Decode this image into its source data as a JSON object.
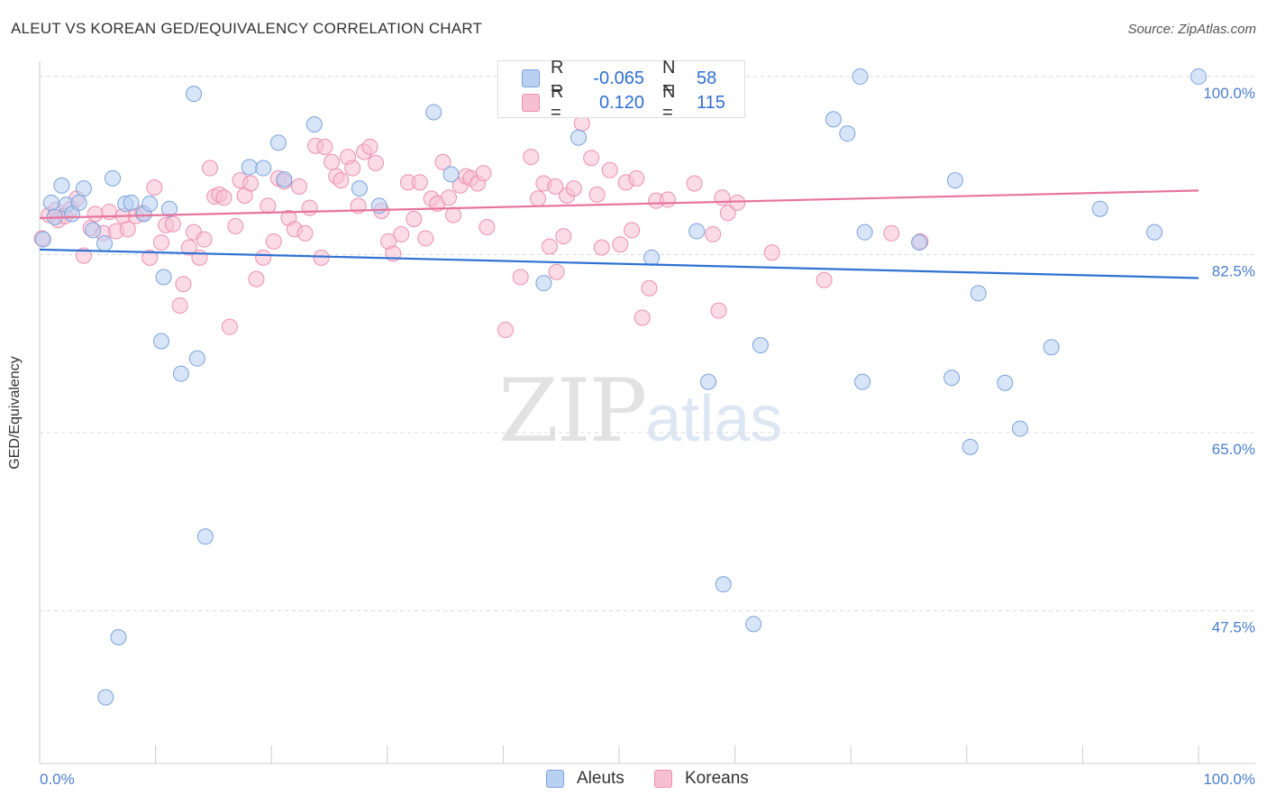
{
  "header": {
    "title": "ALEUT VS KOREAN GED/EQUIVALENCY CORRELATION CHART",
    "source": "Source: ZipAtlas.com"
  },
  "legend": {
    "row1": {
      "r_label": "R =",
      "r_value": "-0.065",
      "n_label": "N =",
      "n_value": "58"
    },
    "row2": {
      "r_label": "R =",
      "r_value": "0.120",
      "n_label": "N =",
      "n_value": "115"
    }
  },
  "bottom_legend": {
    "series1": "Aleuts",
    "series2": "Koreans"
  },
  "watermark": {
    "zip": "ZIP",
    "atlas": "atlas"
  },
  "colors": {
    "aleut_fill": "#b8d0f2",
    "aleut_stroke": "#7aa3dc",
    "aleut_line": "#2f72d2",
    "korean_fill": "#f7bfd2",
    "korean_stroke": "#ec8fb0",
    "korean_line": "#e8739d",
    "grid": "#d9d9d9",
    "axis_text": "#4a7fd0"
  },
  "chart_data": {
    "type": "scatter",
    "title": "ALEUT VS KOREAN GED/EQUIVALENCY CORRELATION CHART",
    "xlabel": "",
    "ylabel": "GED/Equivalency",
    "xlim": [
      0,
      100
    ],
    "ylim": [
      32.5,
      101.5
    ],
    "x_tick_labels": [
      "0.0%",
      "100.0%"
    ],
    "y_ticks": [
      47.5,
      65.0,
      82.5,
      100.0
    ],
    "y_tick_labels": [
      "47.5%",
      "65.0%",
      "82.5%",
      "100.0%"
    ],
    "grid": "horizontal dashed",
    "legend_placement": "top-center",
    "series": [
      {
        "name": "Aleuts",
        "r": -0.065,
        "n": 58,
        "trend": {
          "x": [
            0,
            100
          ],
          "y": [
            83.0,
            80.2
          ]
        },
        "points": [
          [
            0.3,
            84.0
          ],
          [
            1.0,
            87.6
          ],
          [
            1.3,
            86.2
          ],
          [
            1.9,
            89.3
          ],
          [
            2.3,
            87.4
          ],
          [
            2.8,
            86.5
          ],
          [
            3.4,
            87.6
          ],
          [
            3.8,
            89.0
          ],
          [
            4.6,
            84.9
          ],
          [
            5.6,
            83.6
          ],
          [
            6.3,
            90.0
          ],
          [
            7.4,
            87.5
          ],
          [
            7.9,
            87.6
          ],
          [
            9.0,
            86.5
          ],
          [
            9.5,
            87.5
          ],
          [
            10.7,
            80.3
          ],
          [
            11.2,
            87.0
          ],
          [
            10.5,
            74.0
          ],
          [
            12.2,
            70.8
          ],
          [
            13.6,
            72.3
          ],
          [
            13.3,
            98.3
          ],
          [
            14.3,
            54.8
          ],
          [
            18.1,
            91.1
          ],
          [
            19.3,
            91.0
          ],
          [
            20.6,
            93.5
          ],
          [
            21.1,
            89.9
          ],
          [
            23.7,
            95.3
          ],
          [
            27.6,
            89.0
          ],
          [
            29.3,
            87.3
          ],
          [
            34.0,
            96.5
          ],
          [
            35.5,
            90.4
          ],
          [
            43.5,
            79.7
          ],
          [
            46.5,
            94.0
          ],
          [
            52.8,
            82.2
          ],
          [
            56.7,
            84.8
          ],
          [
            57.7,
            70.0
          ],
          [
            59.0,
            50.1
          ],
          [
            61.6,
            46.2
          ],
          [
            62.2,
            73.6
          ],
          [
            68.5,
            95.8
          ],
          [
            69.7,
            94.4
          ],
          [
            70.8,
            100.0
          ],
          [
            71.2,
            84.7
          ],
          [
            71.0,
            70.0
          ],
          [
            75.9,
            83.7
          ],
          [
            78.7,
            70.4
          ],
          [
            79.0,
            89.8
          ],
          [
            80.3,
            63.6
          ],
          [
            81.0,
            78.7
          ],
          [
            83.3,
            69.9
          ],
          [
            84.6,
            65.4
          ],
          [
            87.3,
            73.4
          ],
          [
            91.5,
            87.0
          ],
          [
            96.2,
            84.7
          ],
          [
            100.0,
            100.0
          ],
          [
            5.7,
            39.0
          ],
          [
            6.8,
            44.9
          ],
          [
            56.0,
            100.0
          ]
        ]
      },
      {
        "name": "Koreans",
        "r": 0.12,
        "n": 115,
        "trend": {
          "x": [
            0,
            100
          ],
          "y": [
            86.1,
            88.8
          ]
        },
        "points": [
          [
            0.2,
            84.1
          ],
          [
            0.8,
            86.4
          ],
          [
            1.4,
            86.9
          ],
          [
            1.6,
            85.9
          ],
          [
            2.2,
            86.3
          ],
          [
            2.7,
            87.0
          ],
          [
            3.2,
            88.0
          ],
          [
            3.8,
            82.4
          ],
          [
            4.4,
            85.1
          ],
          [
            4.8,
            86.5
          ],
          [
            5.5,
            84.6
          ],
          [
            6.0,
            86.7
          ],
          [
            6.6,
            84.8
          ],
          [
            7.2,
            86.3
          ],
          [
            7.6,
            85.0
          ],
          [
            8.3,
            86.3
          ],
          [
            8.9,
            86.6
          ],
          [
            9.5,
            82.2
          ],
          [
            9.9,
            89.1
          ],
          [
            10.5,
            83.7
          ],
          [
            10.9,
            85.4
          ],
          [
            11.5,
            85.5
          ],
          [
            12.1,
            77.5
          ],
          [
            12.4,
            79.6
          ],
          [
            12.9,
            83.2
          ],
          [
            13.3,
            84.7
          ],
          [
            13.8,
            82.2
          ],
          [
            14.2,
            84.0
          ],
          [
            14.7,
            91.0
          ],
          [
            15.1,
            88.2
          ],
          [
            15.5,
            88.4
          ],
          [
            15.9,
            88.1
          ],
          [
            16.4,
            75.4
          ],
          [
            16.9,
            85.3
          ],
          [
            17.3,
            89.8
          ],
          [
            17.7,
            88.3
          ],
          [
            18.2,
            89.5
          ],
          [
            18.7,
            80.1
          ],
          [
            19.3,
            82.2
          ],
          [
            19.7,
            87.3
          ],
          [
            20.2,
            83.8
          ],
          [
            20.6,
            90.0
          ],
          [
            21.1,
            89.7
          ],
          [
            21.5,
            86.1
          ],
          [
            22.0,
            85.0
          ],
          [
            22.4,
            89.2
          ],
          [
            22.9,
            84.6
          ],
          [
            23.3,
            87.1
          ],
          [
            23.8,
            93.2
          ],
          [
            24.3,
            82.2
          ],
          [
            24.6,
            93.1
          ],
          [
            25.2,
            91.6
          ],
          [
            25.6,
            90.2
          ],
          [
            26.0,
            89.8
          ],
          [
            26.6,
            92.1
          ],
          [
            27.0,
            91.0
          ],
          [
            27.5,
            87.3
          ],
          [
            28.0,
            92.6
          ],
          [
            28.5,
            93.1
          ],
          [
            29.0,
            91.5
          ],
          [
            29.5,
            86.8
          ],
          [
            30.1,
            83.8
          ],
          [
            30.5,
            82.6
          ],
          [
            31.2,
            84.5
          ],
          [
            31.8,
            89.6
          ],
          [
            32.3,
            86.0
          ],
          [
            32.8,
            89.6
          ],
          [
            33.3,
            84.1
          ],
          [
            33.8,
            88.0
          ],
          [
            34.3,
            87.5
          ],
          [
            34.8,
            91.6
          ],
          [
            35.3,
            88.1
          ],
          [
            35.7,
            86.4
          ],
          [
            36.3,
            89.3
          ],
          [
            36.8,
            90.2
          ],
          [
            37.2,
            90.0
          ],
          [
            37.8,
            89.5
          ],
          [
            38.3,
            90.5
          ],
          [
            38.6,
            85.2
          ],
          [
            40.2,
            75.1
          ],
          [
            40.3,
            98.6
          ],
          [
            41.5,
            80.3
          ],
          [
            42.4,
            92.1
          ],
          [
            43.0,
            88.0
          ],
          [
            43.5,
            89.5
          ],
          [
            44.0,
            83.3
          ],
          [
            44.6,
            80.8
          ],
          [
            45.2,
            84.3
          ],
          [
            45.5,
            88.3
          ],
          [
            46.1,
            89.0
          ],
          [
            46.8,
            95.4
          ],
          [
            47.6,
            92.0
          ],
          [
            48.1,
            88.4
          ],
          [
            48.5,
            83.2
          ],
          [
            49.2,
            90.8
          ],
          [
            50.1,
            83.5
          ],
          [
            50.6,
            89.6
          ],
          [
            51.1,
            84.9
          ],
          [
            51.5,
            90.0
          ],
          [
            52.0,
            76.3
          ],
          [
            52.6,
            79.2
          ],
          [
            53.2,
            87.8
          ],
          [
            54.2,
            87.9
          ],
          [
            56.5,
            89.5
          ],
          [
            58.1,
            84.5
          ],
          [
            58.6,
            77.0
          ],
          [
            59.4,
            86.6
          ],
          [
            60.2,
            87.6
          ],
          [
            63.2,
            82.7
          ],
          [
            67.7,
            80.0
          ],
          [
            73.5,
            84.6
          ],
          [
            76.0,
            83.8
          ],
          [
            41.0,
            99.9
          ],
          [
            44.5,
            89.2
          ],
          [
            58.9,
            88.1
          ]
        ]
      }
    ]
  }
}
